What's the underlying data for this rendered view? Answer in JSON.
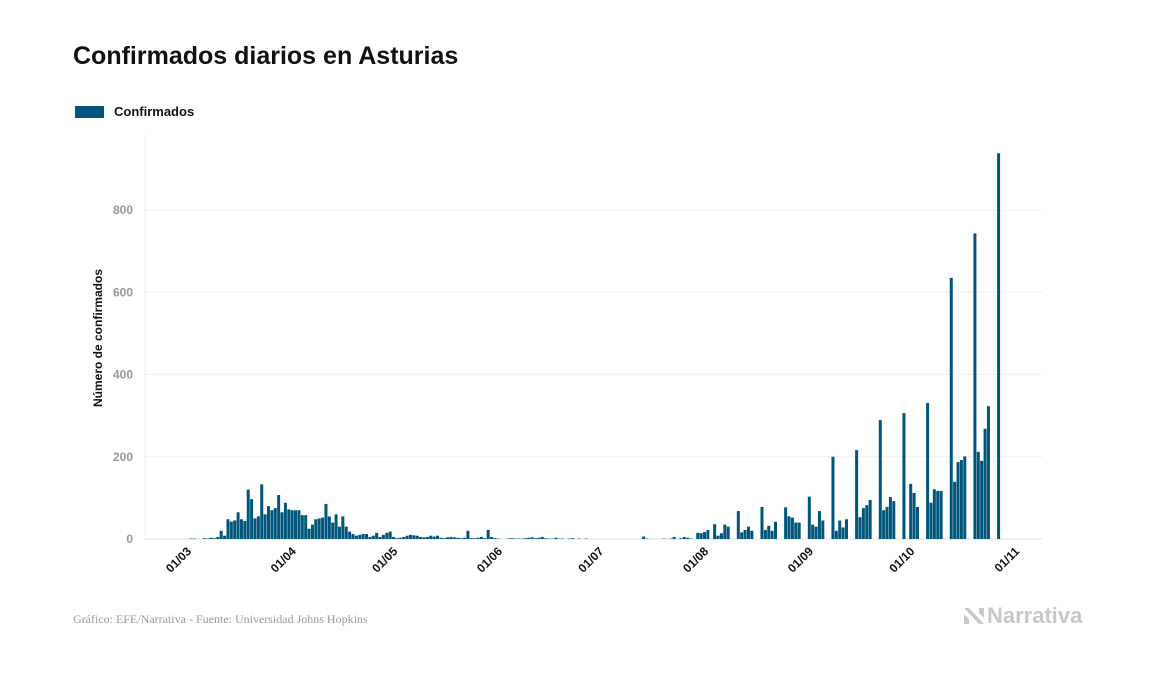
{
  "title": "Confirmados diarios en Asturias",
  "footer": "Gráfico: EFE/Narrativa - Fuente: Universidad Johns Hopkins",
  "logo_text": "Narrativa",
  "colors": {
    "bar": "#00557a",
    "grid": "#eeeeee"
  },
  "chart_data": {
    "type": "bar",
    "title": "Confirmados diarios en Asturias",
    "xlabel": "",
    "ylabel": "Número de confirmados",
    "ylim": [
      0,
      980
    ],
    "yticks": [
      0,
      200,
      400,
      600,
      800
    ],
    "grid": true,
    "legend": {
      "position": "top-left",
      "entries": [
        "Confirmados"
      ]
    },
    "x_start": "01/03",
    "xticks": [
      {
        "label": "01/03",
        "day": 0
      },
      {
        "label": "01/04",
        "day": 31
      },
      {
        "label": "01/05",
        "day": 61
      },
      {
        "label": "01/06",
        "day": 92
      },
      {
        "label": "01/07",
        "day": 122
      },
      {
        "label": "01/08",
        "day": 153
      },
      {
        "label": "01/09",
        "day": 184
      },
      {
        "label": "01/10",
        "day": 214
      },
      {
        "label": "01/11",
        "day": 245
      }
    ],
    "series": [
      {
        "name": "Confirmados",
        "values": [
          0,
          0,
          1,
          1,
          0,
          0,
          2,
          1,
          3,
          2,
          5,
          20,
          8,
          48,
          42,
          45,
          65,
          48,
          44,
          120,
          97,
          50,
          55,
          133,
          60,
          80,
          70,
          75,
          107,
          65,
          88,
          72,
          70,
          70,
          70,
          58,
          58,
          25,
          35,
          48,
          50,
          52,
          85,
          55,
          40,
          60,
          30,
          55,
          30,
          18,
          12,
          8,
          10,
          12,
          12,
          5,
          8,
          15,
          5,
          10,
          15,
          18,
          5,
          2,
          3,
          5,
          8,
          10,
          9,
          8,
          5,
          4,
          5,
          8,
          6,
          8,
          3,
          2,
          4,
          5,
          4,
          3,
          2,
          3,
          20,
          2,
          2,
          3,
          5,
          2,
          22,
          5,
          2,
          1,
          0,
          0,
          1,
          2,
          1,
          1,
          1,
          2,
          3,
          4,
          2,
          3,
          5,
          2,
          1,
          1,
          3,
          1,
          1,
          0,
          1,
          2,
          0,
          1,
          0,
          1,
          0,
          0,
          0,
          0,
          0,
          0,
          0,
          0,
          0,
          0,
          0,
          0,
          0,
          0,
          0,
          0,
          6,
          1,
          0,
          0,
          0,
          0,
          1,
          0,
          1,
          5,
          0,
          2,
          5,
          3,
          1,
          0,
          15,
          14,
          17,
          22,
          0,
          36,
          8,
          14,
          35,
          30,
          0,
          0,
          68,
          16,
          22,
          30,
          20,
          0,
          0,
          78,
          22,
          32,
          20,
          42,
          0,
          0,
          77,
          55,
          52,
          40,
          40,
          0,
          0,
          103,
          35,
          30,
          68,
          45,
          0,
          0,
          200,
          20,
          45,
          28,
          48,
          0,
          0,
          216,
          53,
          75,
          82,
          95,
          0,
          0,
          289,
          70,
          78,
          102,
          92,
          0,
          0,
          306,
          0,
          134,
          112,
          78,
          0,
          0,
          331,
          88,
          121,
          117,
          117,
          0,
          0,
          635,
          139,
          187,
          192,
          201,
          0,
          0,
          743,
          212,
          190,
          268,
          323,
          0,
          0,
          938
        ]
      }
    ]
  }
}
